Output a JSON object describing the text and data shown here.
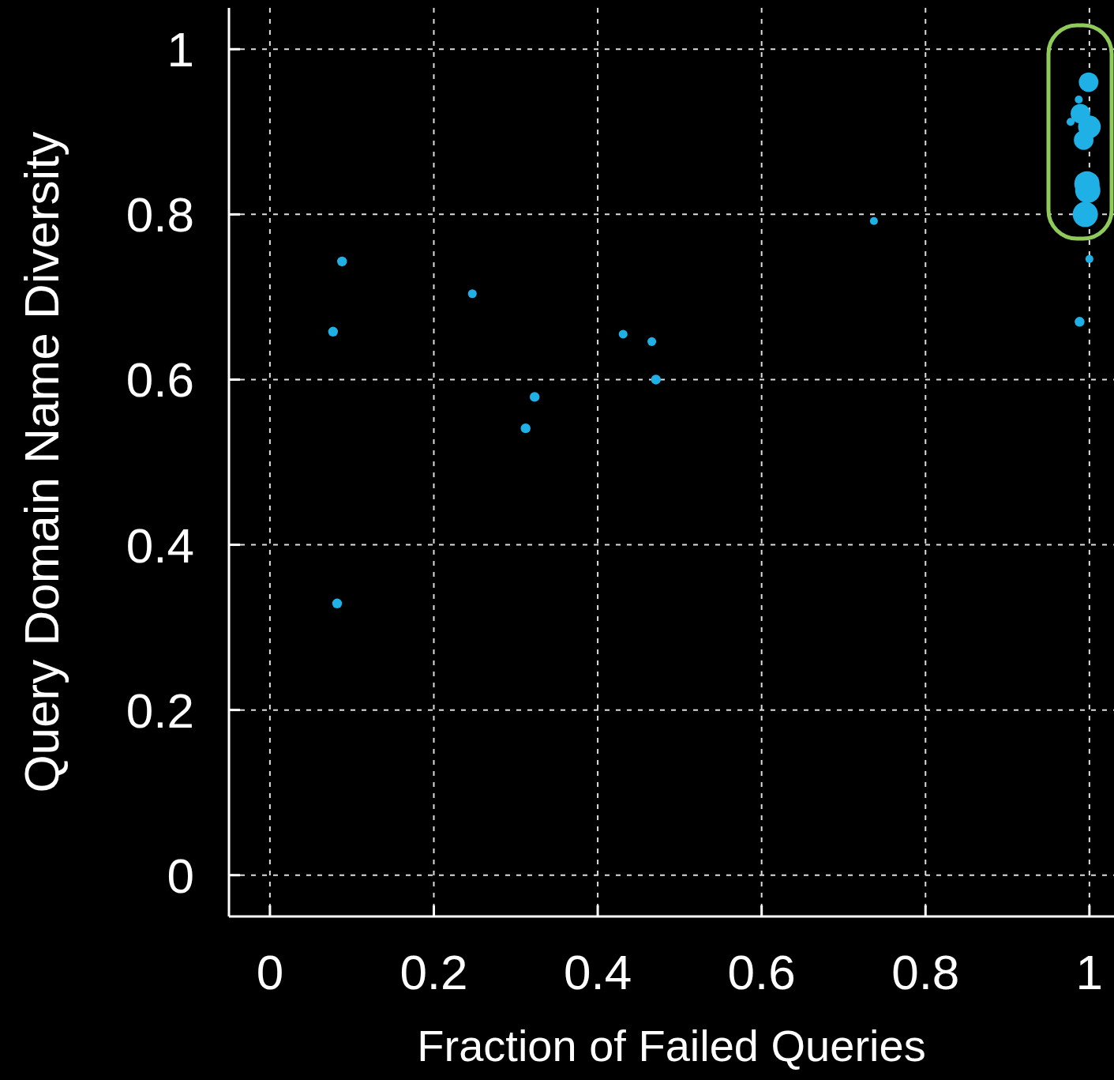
{
  "chart_data": {
    "type": "bubble",
    "xlabel": "Fraction of Failed Queries",
    "ylabel": "Query Domain Name Diversity",
    "xlim": [
      -0.05,
      1.03
    ],
    "ylim": [
      -0.05,
      1.05
    ],
    "xticks": [
      0,
      0.2,
      0.4,
      0.6,
      0.8,
      1
    ],
    "yticks": [
      0,
      0.2,
      0.4,
      0.6,
      0.8,
      1
    ],
    "grid": true,
    "marker": "circle",
    "series": [
      {
        "color": "#1fb0e6",
        "x": [
          0.088,
          0.077,
          0.082,
          0.247,
          0.323,
          0.312,
          0.431,
          0.466,
          0.471,
          0.737,
          0.999,
          0.987,
          0.989,
          0.977,
          1.0,
          0.993,
          0.997,
          0.998,
          0.995,
          1.0,
          0.988
        ],
        "values": [
          0.743,
          0.658,
          0.329,
          0.704,
          0.579,
          0.541,
          0.655,
          0.646,
          0.6,
          0.792,
          0.96,
          0.939,
          0.922,
          0.912,
          0.906,
          0.89,
          0.837,
          0.829,
          0.8,
          0.746,
          0.67
        ],
        "sizes": [
          0.15,
          0.15,
          0.15,
          0.12,
          0.15,
          0.15,
          0.12,
          0.12,
          0.15,
          0.1,
          0.6,
          0.1,
          0.6,
          0.1,
          0.8,
          0.6,
          1,
          1,
          1,
          0.1,
          0.15
        ]
      }
    ]
  }
}
